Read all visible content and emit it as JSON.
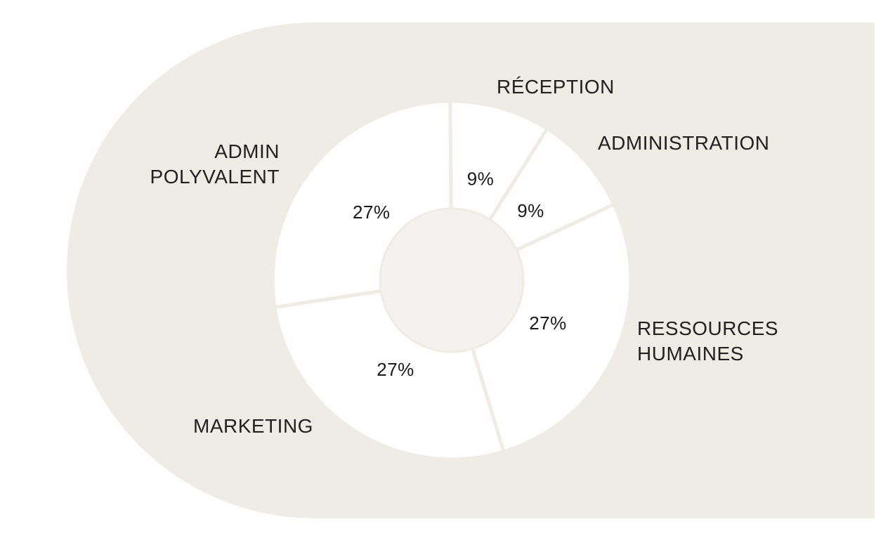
{
  "chart_data": {
    "type": "pie",
    "variant": "donut",
    "title": "",
    "slices": [
      {
        "label": [
          "RÉCEPTION"
        ],
        "value": 9,
        "display": "9%"
      },
      {
        "label": [
          "ADMINISTRATION"
        ],
        "value": 9,
        "display": "9%"
      },
      {
        "label": [
          "RESSOURCES",
          "HUMAINES"
        ],
        "value": 27,
        "display": "27%"
      },
      {
        "label": [
          "MARKETING"
        ],
        "value": 27,
        "display": "27%"
      },
      {
        "label": [
          "ADMIN",
          "POLYVALENT"
        ],
        "value": 27,
        "display": "27%"
      }
    ]
  },
  "colors": {
    "backdrop": "#efebe5",
    "slice_fill": "#ffffff",
    "slice_stroke": "#efebe5",
    "hole": "#f4f2ef",
    "text": "#1a1a1a"
  }
}
